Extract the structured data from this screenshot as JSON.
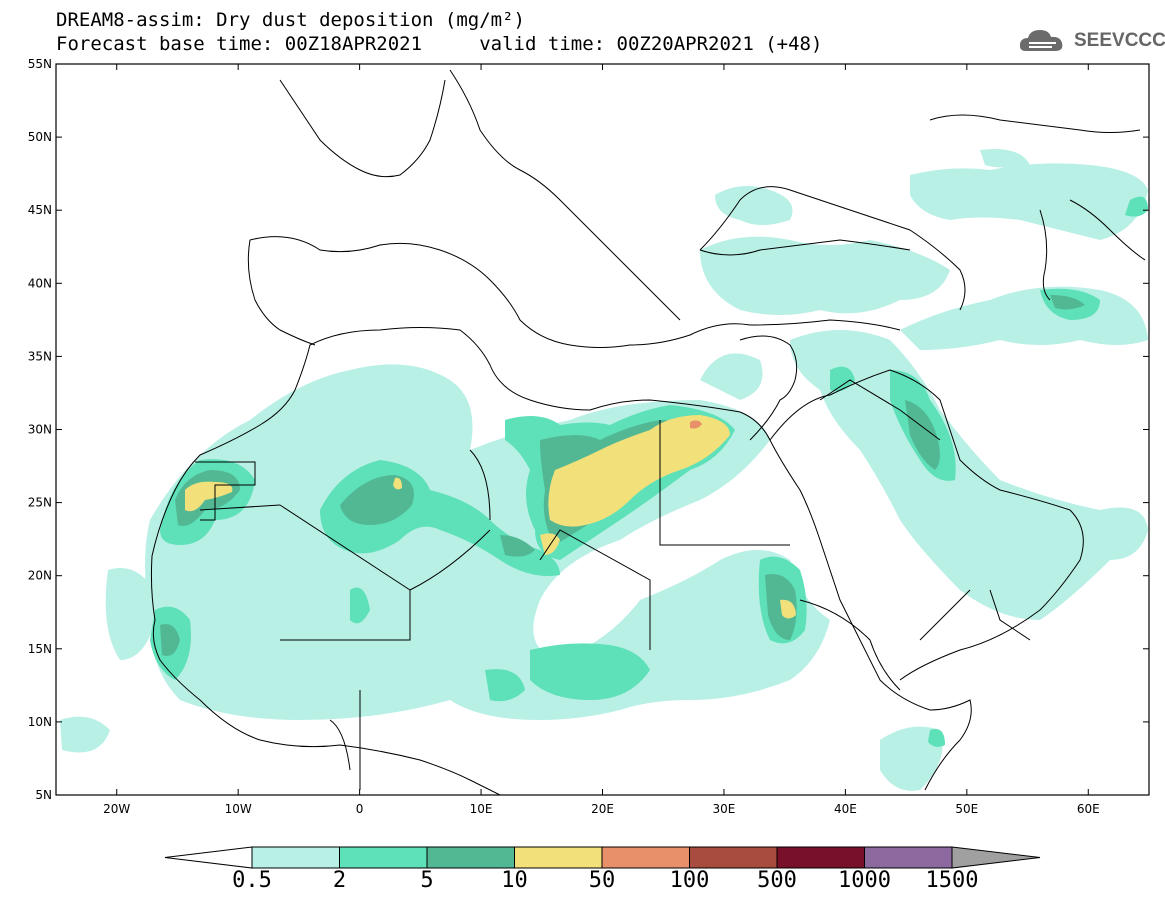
{
  "header": {
    "title_line1": "DREAM8-assim: Dry dust deposition (mg/m²)",
    "title_line2": "Forecast base time: 00Z18APR2021     valid time: 00Z20APR2021 (+48)",
    "logo_text": "SEEVCCC"
  },
  "map": {
    "lon_range": [
      -25,
      65
    ],
    "lat_range": [
      5,
      55
    ],
    "lon_ticks": [
      {
        "value": -20,
        "label": "20W"
      },
      {
        "value": -10,
        "label": "10W"
      },
      {
        "value": 0,
        "label": "0"
      },
      {
        "value": 10,
        "label": "10E"
      },
      {
        "value": 20,
        "label": "20E"
      },
      {
        "value": 30,
        "label": "30E"
      },
      {
        "value": 40,
        "label": "40E"
      },
      {
        "value": 50,
        "label": "50E"
      },
      {
        "value": 60,
        "label": "60E"
      }
    ],
    "lat_ticks": [
      {
        "value": 55,
        "label": "55N"
      },
      {
        "value": 50,
        "label": "50N"
      },
      {
        "value": 45,
        "label": "45N"
      },
      {
        "value": 40,
        "label": "40N"
      },
      {
        "value": 35,
        "label": "35N"
      },
      {
        "value": 30,
        "label": "30N"
      },
      {
        "value": 25,
        "label": "25N"
      },
      {
        "value": 20,
        "label": "20N"
      },
      {
        "value": 15,
        "label": "15N"
      },
      {
        "value": 10,
        "label": "10N"
      },
      {
        "value": 5,
        "label": "5N"
      }
    ]
  },
  "colorbar": {
    "labels": [
      "0.5",
      "2",
      "5",
      "10",
      "50",
      "100",
      "500",
      "1000",
      "1500"
    ],
    "colors": [
      "#b8f0e6",
      "#5ee0b8",
      "#52b894",
      "#f2e07a",
      "#e8906a",
      "#a84c40",
      "#78102a",
      "#8c6aa0"
    ],
    "under_color": "#ffffff",
    "over_color": "#a0a0a0"
  },
  "colors": {
    "level_05": "#b8f0e6",
    "level_2": "#5ee0b8",
    "level_5": "#52b894",
    "level_10": "#f2e07a",
    "level_50": "#e8906a",
    "coast": "#000000"
  }
}
